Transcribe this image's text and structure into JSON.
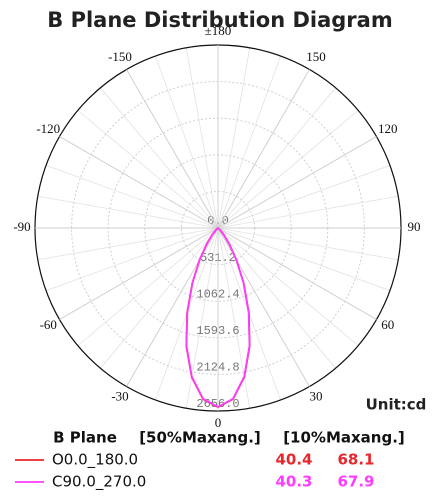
{
  "chart_data": {
    "type": "polar",
    "title": "B Plane Distribution Diagram",
    "unit_label": "Unit:cd",
    "rlim": [
      0,
      2656
    ],
    "rticks": [
      {
        "value": 0,
        "label": "0.0"
      },
      531.2,
      1062.4,
      1593.6,
      2124.8,
      {
        "value": 2656,
        "label": "2656.0"
      }
    ],
    "thetaticks": [
      -150,
      -120,
      -90,
      -60,
      -30,
      0,
      30,
      60,
      90,
      120,
      150,
      {
        "value": 180,
        "label": "±180"
      }
    ],
    "legend_header": [
      "B Plane",
      "[50%Maxang.]",
      "[10%Maxang.]"
    ],
    "series": [
      {
        "name": "O0.0_180.0",
        "color": "#e8262d",
        "beam_50": 40.4,
        "beam_10": 68.1,
        "theta": [
          -60,
          -55,
          -50,
          -45,
          -40,
          -35,
          -30,
          -25,
          -20,
          -15,
          -10,
          -5,
          0,
          5,
          10,
          15,
          20,
          25,
          30,
          35,
          40,
          45,
          50,
          55,
          60
        ],
        "values": [
          0,
          6,
          20,
          57,
          139,
          290,
          535,
          881,
          1310,
          1776,
          2197,
          2493,
          2600,
          2493,
          2197,
          1776,
          1310,
          881,
          535,
          290,
          139,
          57,
          20,
          6,
          0
        ]
      },
      {
        "name": "C90.0_270.0",
        "color": "#ff3cff",
        "beam_50": 40.3,
        "beam_10": 67.9,
        "theta": [
          -60,
          -55,
          -50,
          -45,
          -40,
          -35,
          -30,
          -25,
          -20,
          -15,
          -10,
          -5,
          0,
          5,
          10,
          15,
          20,
          25,
          30,
          35,
          40,
          45,
          50,
          55,
          60
        ],
        "values": [
          0,
          5,
          18,
          54,
          134,
          284,
          528,
          872,
          1300,
          1768,
          2190,
          2488,
          2596,
          2488,
          2190,
          1768,
          1300,
          872,
          528,
          284,
          134,
          54,
          18,
          5,
          0
        ]
      }
    ]
  }
}
